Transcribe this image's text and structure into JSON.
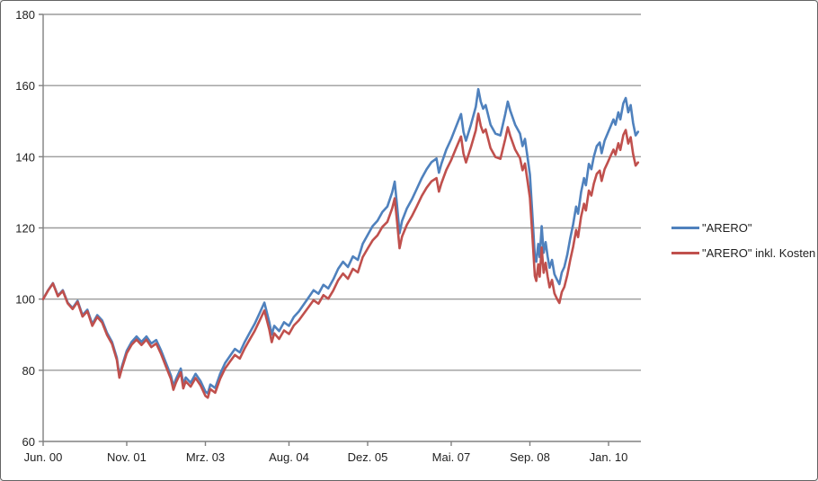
{
  "window": {
    "background": "#ffffff",
    "border_color": "#646464"
  },
  "legend": {
    "position": "right",
    "items": [
      {
        "label": "\"ARERO\"",
        "color": "#4F81BD"
      },
      {
        "label": "\"ARERO\" inkl. Kosten",
        "color": "#C0504D"
      }
    ]
  },
  "chart_data": {
    "type": "line",
    "title": "",
    "xlabel": "",
    "ylabel": "",
    "grid": true,
    "grid_color": "#9C9C9C",
    "axis_color": "#808080",
    "ylim": [
      60,
      180
    ],
    "yticks": [
      60,
      80,
      100,
      120,
      140,
      160,
      180
    ],
    "ytick_labels": [
      "60",
      "80",
      "100",
      "120",
      "140",
      "160",
      "180"
    ],
    "xlim_months": [
      0,
      121.6
    ],
    "xticks": [
      {
        "t": 0,
        "label": "Jun. 00"
      },
      {
        "t": 17,
        "label": "Nov. 01"
      },
      {
        "t": 33,
        "label": "Mrz. 03"
      },
      {
        "t": 50,
        "label": "Aug. 04"
      },
      {
        "t": 66,
        "label": "Dez. 05"
      },
      {
        "t": 83,
        "label": "Mai. 07"
      },
      {
        "t": 99,
        "label": "Sep. 08"
      },
      {
        "t": 115,
        "label": "Jan. 10"
      }
    ],
    "legend_position": "right",
    "series": [
      {
        "name": "\"ARERO\"",
        "color": "#4F81BD"
      },
      {
        "name": "\"ARERO\" inkl. Kosten",
        "color": "#C0504D"
      }
    ],
    "columns": [
      "t_months_since_Jun2000",
      "ARERO",
      "ARERO_inkl_Kosten"
    ],
    "points": [
      [
        0,
        100,
        100
      ],
      [
        1,
        102.5,
        102.4
      ],
      [
        2,
        104.5,
        104.4
      ],
      [
        3,
        101,
        100.8
      ],
      [
        4,
        102.5,
        102.3
      ],
      [
        5,
        99,
        98.8
      ],
      [
        6,
        97.5,
        97.2
      ],
      [
        7,
        99.5,
        99.2
      ],
      [
        8,
        95.5,
        95.1
      ],
      [
        9,
        97,
        96.6
      ],
      [
        10,
        93,
        92.5
      ],
      [
        11,
        95.5,
        95.0
      ],
      [
        12,
        94,
        93.4
      ],
      [
        13,
        90.5,
        89.9
      ],
      [
        14,
        88,
        87.4
      ],
      [
        15,
        83.5,
        82.9
      ],
      [
        15.5,
        78.5,
        77.9
      ],
      [
        16,
        81,
        80.4
      ],
      [
        17,
        85.5,
        84.8
      ],
      [
        18,
        88,
        87.2
      ],
      [
        19,
        89.5,
        88.6
      ],
      [
        20,
        88,
        87.1
      ],
      [
        21,
        89.5,
        88.6
      ],
      [
        22,
        87.5,
        86.5
      ],
      [
        23,
        88.5,
        87.5
      ],
      [
        24,
        85.5,
        84.5
      ],
      [
        25,
        82,
        81.0
      ],
      [
        26,
        78.5,
        77.5
      ],
      [
        26.5,
        75.5,
        74.5
      ],
      [
        27,
        77.5,
        76.5
      ],
      [
        28,
        80.5,
        79.4
      ],
      [
        28.5,
        76,
        74.9
      ],
      [
        29,
        78,
        76.9
      ],
      [
        30,
        76.5,
        75.4
      ],
      [
        31,
        79,
        77.8
      ],
      [
        32,
        77,
        75.8
      ],
      [
        33,
        74,
        72.8
      ],
      [
        33.5,
        73.5,
        72.3
      ],
      [
        34,
        76,
        74.7
      ],
      [
        35,
        75,
        73.7
      ],
      [
        36,
        79,
        77.6
      ],
      [
        37,
        82,
        80.5
      ],
      [
        38,
        84,
        82.4
      ],
      [
        39,
        86,
        84.3
      ],
      [
        40,
        85,
        83.3
      ],
      [
        41,
        88,
        86.2
      ],
      [
        42,
        90.5,
        88.6
      ],
      [
        43,
        93,
        91.0
      ],
      [
        44,
        96,
        93.9
      ],
      [
        45,
        99,
        96.8
      ],
      [
        46,
        93.5,
        91.4
      ],
      [
        46.5,
        90,
        87.9
      ],
      [
        47,
        92.5,
        90.4
      ],
      [
        48,
        91,
        88.8
      ],
      [
        49,
        93.5,
        91.2
      ],
      [
        50,
        92.5,
        90.2
      ],
      [
        51,
        95,
        92.6
      ],
      [
        52,
        96.5,
        94.0
      ],
      [
        53,
        98.5,
        95.9
      ],
      [
        54,
        100.5,
        97.8
      ],
      [
        55,
        102.5,
        99.7
      ],
      [
        56,
        101.5,
        98.7
      ],
      [
        57,
        104,
        101.1
      ],
      [
        58,
        103,
        100.1
      ],
      [
        59,
        105.5,
        102.4
      ],
      [
        60,
        108.5,
        105.3
      ],
      [
        61,
        110.5,
        107.2
      ],
      [
        62,
        109,
        105.7
      ],
      [
        63,
        112,
        108.5
      ],
      [
        64,
        111,
        107.5
      ],
      [
        65,
        115.5,
        111.8
      ],
      [
        66,
        118,
        114.2
      ],
      [
        67,
        120.5,
        116.5
      ],
      [
        68,
        122,
        117.9
      ],
      [
        69,
        124.5,
        120.3
      ],
      [
        70,
        126,
        121.7
      ],
      [
        71,
        130,
        125.5
      ],
      [
        71.5,
        133,
        128.3
      ],
      [
        72,
        126,
        121.6
      ],
      [
        72.5,
        118.5,
        114.3
      ],
      [
        73,
        122,
        117.6
      ],
      [
        74,
        125.5,
        120.9
      ],
      [
        75,
        128,
        123.3
      ],
      [
        76,
        131,
        126.1
      ],
      [
        77,
        134,
        129.0
      ],
      [
        78,
        136.5,
        131.3
      ],
      [
        79,
        138.5,
        133.1
      ],
      [
        80,
        139.5,
        134.0
      ],
      [
        80.5,
        135.5,
        130.2
      ],
      [
        81,
        138,
        132.5
      ],
      [
        82,
        142,
        136.3
      ],
      [
        83,
        145,
        139.1
      ],
      [
        84,
        148.5,
        142.4
      ],
      [
        85,
        152,
        145.7
      ],
      [
        85.5,
        147,
        140.9
      ],
      [
        86,
        144.5,
        138.4
      ],
      [
        87,
        149,
        142.7
      ],
      [
        88,
        154,
        147.4
      ],
      [
        88.5,
        159,
        152.1
      ],
      [
        89,
        155.5,
        148.7
      ],
      [
        89.5,
        153.5,
        146.8
      ],
      [
        90,
        154.5,
        147.7
      ],
      [
        91,
        149,
        142.4
      ],
      [
        92,
        146.5,
        139.9
      ],
      [
        93,
        146,
        139.4
      ],
      [
        94,
        152,
        145.0
      ],
      [
        94.5,
        155.5,
        148.3
      ],
      [
        95,
        153,
        145.9
      ],
      [
        96,
        149,
        142.0
      ],
      [
        97,
        146.5,
        139.6
      ],
      [
        97.5,
        143,
        136.2
      ],
      [
        98,
        145,
        138.1
      ],
      [
        98.5,
        140,
        133.3
      ],
      [
        99,
        135,
        128.5
      ],
      [
        99.5,
        124,
        118.0
      ],
      [
        100,
        112,
        106.5
      ],
      [
        100.3,
        110.5,
        105.1
      ],
      [
        100.7,
        115.5,
        109.8
      ],
      [
        101,
        111.8,
        106.3
      ],
      [
        101.4,
        120.5,
        114.5
      ],
      [
        101.8,
        113,
        107.4
      ],
      [
        102.2,
        116,
        110.2
      ],
      [
        102.6,
        112,
        106.4
      ],
      [
        103,
        108.8,
        103.3
      ],
      [
        103.5,
        111,
        105.4
      ],
      [
        104,
        107,
        101.6
      ],
      [
        104.5,
        105.5,
        100.1
      ],
      [
        105,
        104.2,
        98.9
      ],
      [
        105.5,
        107.5,
        102.0
      ],
      [
        106,
        109,
        103.4
      ],
      [
        106.6,
        112.5,
        106.7
      ],
      [
        107.2,
        117,
        110.9
      ],
      [
        107.8,
        121,
        114.7
      ],
      [
        108.4,
        126,
        119.4
      ],
      [
        108.8,
        124,
        117.4
      ],
      [
        109.4,
        130,
        123.1
      ],
      [
        110,
        134,
        126.8
      ],
      [
        110.4,
        132,
        124.9
      ],
      [
        111,
        138,
        130.5
      ],
      [
        111.5,
        136.5,
        129.1
      ],
      [
        112,
        140,
        132.4
      ],
      [
        112.6,
        143,
        135.2
      ],
      [
        113.2,
        144,
        136.1
      ],
      [
        113.6,
        141,
        133.2
      ],
      [
        114.2,
        144.5,
        136.5
      ],
      [
        114.8,
        146.5,
        138.3
      ],
      [
        115.4,
        148.5,
        140.2
      ],
      [
        116,
        150.5,
        142.0
      ],
      [
        116.4,
        149,
        140.6
      ],
      [
        117,
        152.5,
        143.8
      ],
      [
        117.4,
        150.5,
        141.9
      ],
      [
        118,
        155,
        146.1
      ],
      [
        118.5,
        156.5,
        147.5
      ],
      [
        119,
        152.5,
        143.7
      ],
      [
        119.5,
        154.5,
        145.5
      ],
      [
        120,
        149.5,
        140.8
      ],
      [
        120.5,
        146,
        137.5
      ],
      [
        121,
        147,
        138.4
      ]
    ]
  }
}
